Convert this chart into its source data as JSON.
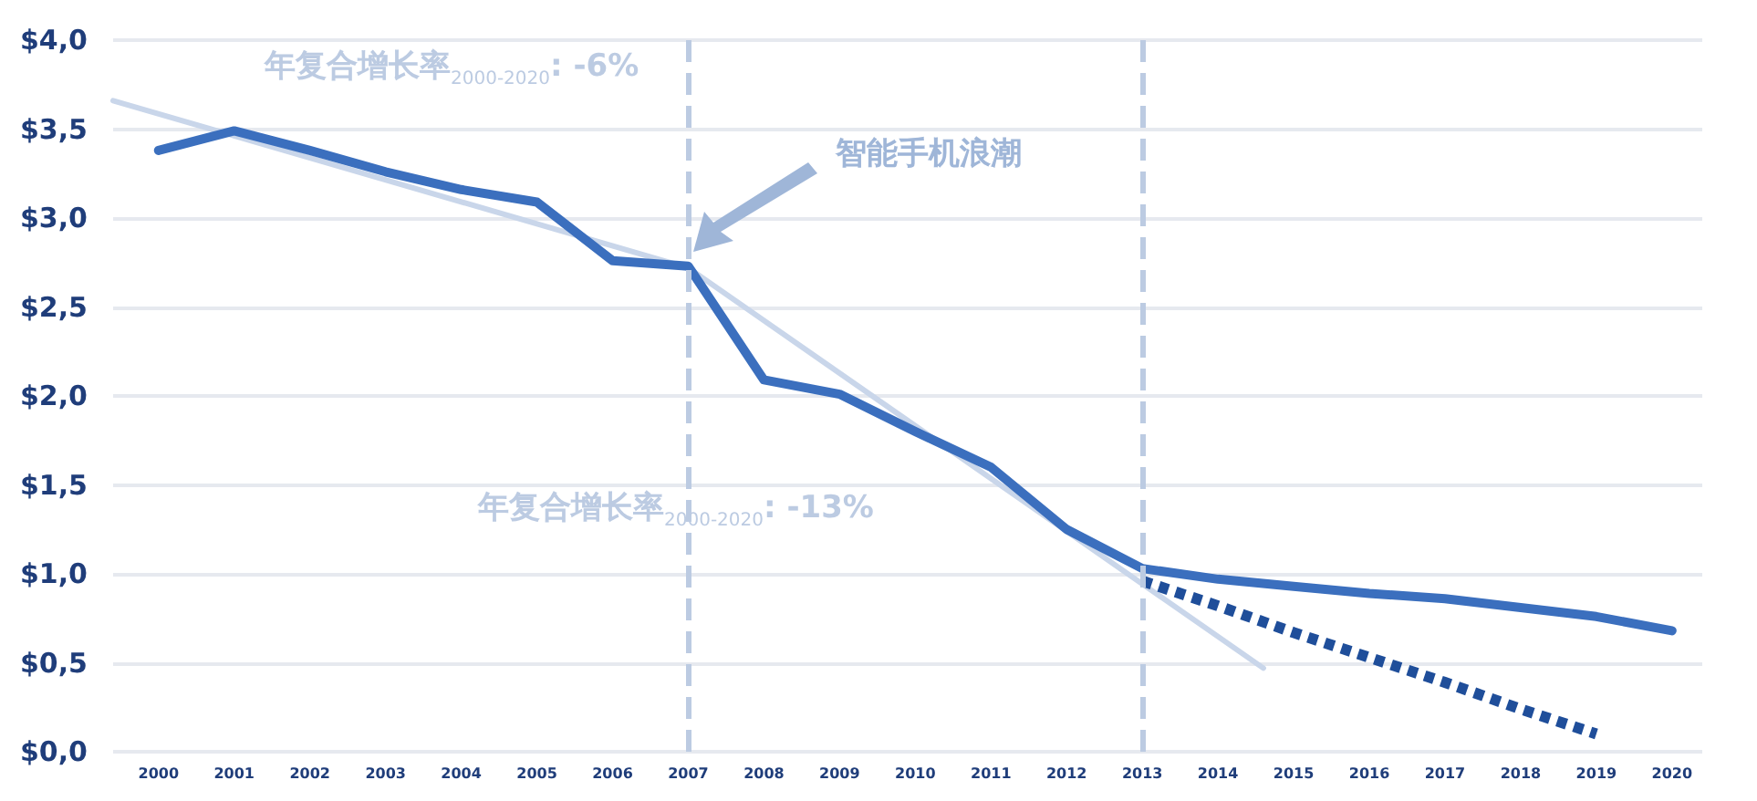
{
  "chart_data": {
    "type": "line",
    "x": [
      2000,
      2001,
      2002,
      2003,
      2004,
      2005,
      2006,
      2007,
      2008,
      2009,
      2010,
      2011,
      2012,
      2013,
      2014,
      2015,
      2016,
      2017,
      2018,
      2019,
      2020
    ],
    "xlim": [
      1999.4,
      2020.4
    ],
    "xticks": [
      2000,
      2001,
      2002,
      2003,
      2004,
      2005,
      2006,
      2007,
      2008,
      2009,
      2010,
      2011,
      2012,
      2013,
      2014,
      2015,
      2016,
      2017,
      2018,
      2019,
      2020
    ],
    "ylim": [
      0,
      4
    ],
    "yticks": [
      {
        "value": 0,
        "label": "$0,0"
      },
      {
        "value": 0.5,
        "label": "$0,5"
      },
      {
        "value": 1,
        "label": "$1,0"
      },
      {
        "value": 1.5,
        "label": "$1,5"
      },
      {
        "value": 2,
        "label": "$2,0"
      },
      {
        "value": 2.5,
        "label": "$2,5"
      },
      {
        "value": 3,
        "label": "$3,0"
      },
      {
        "value": 3.5,
        "label": "$3,5"
      },
      {
        "value": 4,
        "label": "$4,0"
      }
    ],
    "grid": "y",
    "marker": "none",
    "series": [
      {
        "color": "#c9d6ea",
        "x": [
          1999.4,
          2007,
          2014.6
        ],
        "values": [
          3.66,
          2.72,
          0.47
        ],
        "line_style": "solid"
      },
      {
        "color": "#3b6fbe",
        "values": [
          3.38,
          3.49,
          3.38,
          3.26,
          3.16,
          3.09,
          2.76,
          2.73,
          2.09,
          2.01,
          1.8,
          1.6,
          1.25,
          1.03,
          0.97,
          0.93,
          0.89,
          0.86,
          0.81,
          0.76,
          0.68
        ],
        "line_style": "solid"
      },
      {
        "color": "#1f4e9a",
        "x": [
          2013,
          2014,
          2015,
          2016,
          2017,
          2018,
          2019
        ],
        "values": [
          0.96,
          0.82,
          0.67,
          0.53,
          0.39,
          0.24,
          0.1
        ],
        "line_style": "dotted"
      }
    ],
    "ref_lines": [
      {
        "axis": "x",
        "value": 2007,
        "color": "#bccbe2",
        "line_style": "dashed"
      },
      {
        "axis": "x",
        "value": 2013,
        "color": "#bccbe2",
        "line_style": "dashed"
      }
    ],
    "annotations": [
      "年复合增长率$_{2000-2020}$: -6%",
      "智能手机浪潮",
      "年复合增长率$_{2000-2020}$: -13%"
    ]
  }
}
